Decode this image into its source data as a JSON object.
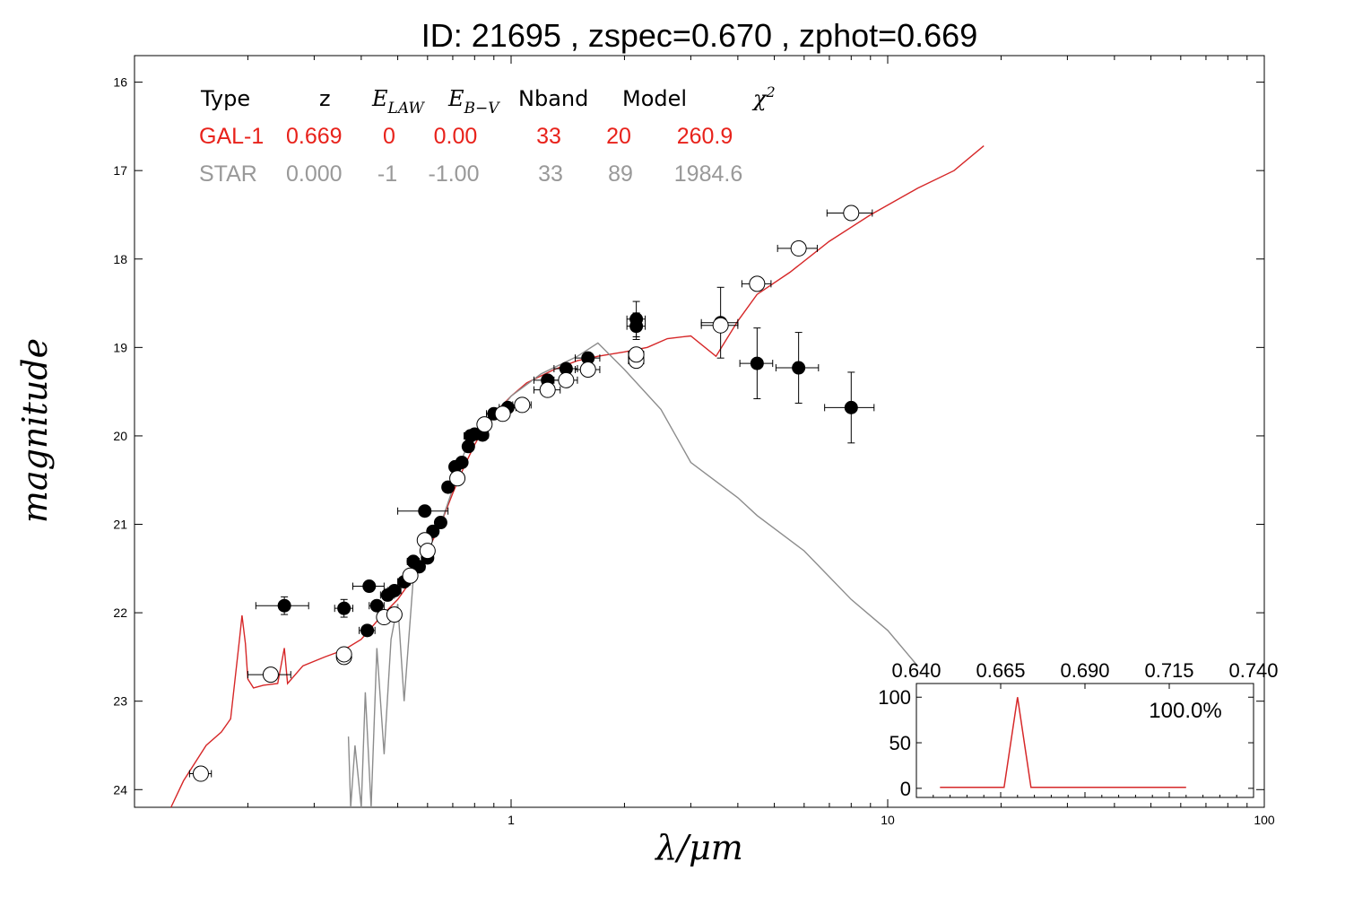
{
  "chart_data": {
    "type": "scatter",
    "title": "ID:  21695 , zspec=0.670 , zphot=0.669",
    "xlabel": "λ/μm",
    "ylabel": "magnitude",
    "x_scale": "log",
    "xlim": [
      0.1,
      100
    ],
    "ylim": [
      24.2,
      15.7
    ],
    "x_ticks": [
      {
        "v": 1,
        "label": "1"
      },
      {
        "v": 10,
        "label": "10"
      },
      {
        "v": 100,
        "label": "100"
      }
    ],
    "y_ticks": [
      {
        "v": 16,
        "label": "16"
      },
      {
        "v": 17,
        "label": "17"
      },
      {
        "v": 18,
        "label": "18"
      },
      {
        "v": 19,
        "label": "19"
      },
      {
        "v": 20,
        "label": "20"
      },
      {
        "v": 21,
        "label": "21"
      },
      {
        "v": 22,
        "label": "22"
      },
      {
        "v": 23,
        "label": "23"
      },
      {
        "v": 24,
        "label": "24"
      }
    ],
    "table": {
      "headers": {
        "type": "Type",
        "z": "z",
        "elaw_base": "E",
        "elaw_sub": "LAW",
        "ebv_base": "E",
        "ebv_sub": "B−V",
        "nband": "Nband",
        "model": "Model",
        "chi_base": "χ",
        "chi_sup": "2"
      },
      "rows": [
        {
          "type": "GAL-1",
          "z": "0.669",
          "elaw": "0",
          "ebv": "0.00",
          "nband": "33",
          "model": "20",
          "chi2": "260.9",
          "color": "#e8221b"
        },
        {
          "type": "STAR",
          "z": "0.000",
          "elaw": "-1",
          "ebv": "-1.00",
          "nband": "33",
          "model": "89",
          "chi2": "1984.6",
          "color": "#999999"
        }
      ]
    },
    "series": [
      {
        "name": "GAL-1",
        "color": "#d62728",
        "points": [
          [
            0.125,
            24.2
          ],
          [
            0.135,
            23.9
          ],
          [
            0.155,
            23.5
          ],
          [
            0.17,
            23.35
          ],
          [
            0.18,
            23.2
          ],
          [
            0.19,
            22.3
          ],
          [
            0.193,
            22.03
          ],
          [
            0.197,
            22.35
          ],
          [
            0.2,
            22.75
          ],
          [
            0.207,
            22.85
          ],
          [
            0.22,
            22.82
          ],
          [
            0.24,
            22.8
          ],
          [
            0.25,
            22.4
          ],
          [
            0.255,
            22.8
          ],
          [
            0.28,
            22.6
          ],
          [
            0.32,
            22.5
          ],
          [
            0.36,
            22.42
          ],
          [
            0.4,
            22.3
          ],
          [
            0.45,
            22.05
          ],
          [
            0.5,
            21.85
          ],
          [
            0.55,
            21.6
          ],
          [
            0.6,
            21.3
          ],
          [
            0.65,
            21.0
          ],
          [
            0.7,
            20.65
          ],
          [
            0.75,
            20.35
          ],
          [
            0.8,
            20.1
          ],
          [
            0.85,
            19.9
          ],
          [
            0.9,
            19.75
          ],
          [
            1.0,
            19.55
          ],
          [
            1.1,
            19.4
          ],
          [
            1.3,
            19.25
          ],
          [
            1.5,
            19.15
          ],
          [
            1.7,
            19.1
          ],
          [
            2.0,
            19.05
          ],
          [
            2.3,
            19.0
          ],
          [
            2.6,
            18.9
          ],
          [
            3.0,
            18.87
          ],
          [
            3.5,
            19.1
          ],
          [
            4.0,
            18.7
          ],
          [
            4.5,
            18.4
          ],
          [
            5.5,
            18.15
          ],
          [
            7.0,
            17.8
          ],
          [
            9.0,
            17.5
          ],
          [
            12.0,
            17.2
          ],
          [
            15.0,
            17.0
          ],
          [
            18.0,
            16.72
          ]
        ]
      },
      {
        "name": "STAR",
        "color": "#8c8c8c",
        "points": [
          [
            0.37,
            23.4
          ],
          [
            0.375,
            24.2
          ],
          [
            0.385,
            23.5
          ],
          [
            0.4,
            24.2
          ],
          [
            0.41,
            22.9
          ],
          [
            0.425,
            24.2
          ],
          [
            0.44,
            22.4
          ],
          [
            0.46,
            23.6
          ],
          [
            0.48,
            22.3
          ],
          [
            0.5,
            21.9
          ],
          [
            0.52,
            23.0
          ],
          [
            0.55,
            21.6
          ],
          [
            0.6,
            21.25
          ],
          [
            0.65,
            21.0
          ],
          [
            0.7,
            20.6
          ],
          [
            0.75,
            20.2
          ],
          [
            0.8,
            20.0
          ],
          [
            0.9,
            19.8
          ],
          [
            1.0,
            19.55
          ],
          [
            1.2,
            19.3
          ],
          [
            1.5,
            19.1
          ],
          [
            1.7,
            18.95
          ],
          [
            2.0,
            19.25
          ],
          [
            2.5,
            19.7
          ],
          [
            3.0,
            20.3
          ],
          [
            4.0,
            20.7
          ],
          [
            4.5,
            20.9
          ],
          [
            6.0,
            21.3
          ],
          [
            8.0,
            21.85
          ],
          [
            10.0,
            22.2
          ],
          [
            12.0,
            22.6
          ]
        ]
      }
    ],
    "observed": [
      {
        "x": 0.25,
        "y": 21.92,
        "xerr": 0.04,
        "yerr": 0.1
      },
      {
        "x": 0.36,
        "y": 21.95,
        "xerr": 0.02,
        "yerr": 0.1
      },
      {
        "x": 0.42,
        "y": 21.7,
        "xerr": 0.04,
        "yerr": 0.05
      },
      {
        "x": 0.415,
        "y": 22.2,
        "xerr": 0.02,
        "yerr": 0.05
      },
      {
        "x": 0.44,
        "y": 21.92,
        "xerr": 0.02,
        "yerr": 0.05
      },
      {
        "x": 0.47,
        "y": 21.8,
        "xerr": 0.02,
        "yerr": 0.05
      },
      {
        "x": 0.49,
        "y": 21.75,
        "xerr": 0.02,
        "yerr": 0.05
      },
      {
        "x": 0.52,
        "y": 21.65,
        "xerr": 0.02,
        "yerr": 0.05
      },
      {
        "x": 0.55,
        "y": 21.42,
        "xerr": 0.02,
        "yerr": 0.05
      },
      {
        "x": 0.57,
        "y": 21.48,
        "xerr": 0.02,
        "yerr": 0.05
      },
      {
        "x": 0.6,
        "y": 21.38,
        "xerr": 0.02,
        "yerr": 0.05
      },
      {
        "x": 0.59,
        "y": 20.85,
        "xerr": 0.09,
        "yerr": 0.05
      },
      {
        "x": 0.62,
        "y": 21.08,
        "xerr": 0.02,
        "yerr": 0.05
      },
      {
        "x": 0.65,
        "y": 20.98,
        "xerr": 0.02,
        "yerr": 0.05
      },
      {
        "x": 0.68,
        "y": 20.58,
        "xerr": 0.02,
        "yerr": 0.05
      },
      {
        "x": 0.71,
        "y": 20.35,
        "xerr": 0.02,
        "yerr": 0.05
      },
      {
        "x": 0.74,
        "y": 20.3,
        "xerr": 0.02,
        "yerr": 0.05
      },
      {
        "x": 0.77,
        "y": 20.12,
        "xerr": 0.02,
        "yerr": 0.05
      },
      {
        "x": 0.78,
        "y": 20.0,
        "xerr": 0.03,
        "yerr": 0.05
      },
      {
        "x": 0.8,
        "y": 19.98,
        "xerr": 0.03,
        "yerr": 0.05
      },
      {
        "x": 0.84,
        "y": 19.99,
        "xerr": 0.03,
        "yerr": 0.05
      },
      {
        "x": 0.9,
        "y": 19.75,
        "xerr": 0.04,
        "yerr": 0.05
      },
      {
        "x": 0.98,
        "y": 19.68,
        "xerr": 0.05,
        "yerr": 0.05
      },
      {
        "x": 1.25,
        "y": 19.37,
        "xerr": 0.1,
        "yerr": 0.05
      },
      {
        "x": 1.4,
        "y": 19.24,
        "xerr": 0.1,
        "yerr": 0.05
      },
      {
        "x": 1.6,
        "y": 19.12,
        "xerr": 0.12,
        "yerr": 0.05
      },
      {
        "x": 2.15,
        "y": 18.68,
        "xerr": 0.12,
        "yerr": 0.2
      },
      {
        "x": 2.15,
        "y": 18.76,
        "xerr": 0.12,
        "yerr": 0.15
      },
      {
        "x": 3.6,
        "y": 18.72,
        "xerr": 0.4,
        "yerr": 0.4
      },
      {
        "x": 4.5,
        "y": 19.18,
        "xerr": 0.45,
        "yerr": 0.4
      },
      {
        "x": 5.8,
        "y": 19.23,
        "xerr": 0.75,
        "yerr": 0.4
      },
      {
        "x": 8.0,
        "y": 19.68,
        "xerr": 1.2,
        "yerr": 0.4
      }
    ],
    "model_fluxes": [
      {
        "x": 0.15,
        "y": 23.82,
        "xerr": 0.01
      },
      {
        "x": 0.23,
        "y": 22.7,
        "xerr": 0.03
      },
      {
        "x": 0.36,
        "y": 22.5,
        "xerr": 0.01
      },
      {
        "x": 0.36,
        "y": 22.47,
        "xerr": 0.01
      },
      {
        "x": 0.46,
        "y": 22.05,
        "xerr": 0.01
      },
      {
        "x": 0.49,
        "y": 22.02,
        "xerr": 0.01
      },
      {
        "x": 0.54,
        "y": 21.58,
        "xerr": 0.02
      },
      {
        "x": 0.59,
        "y": 21.18,
        "xerr": 0.02
      },
      {
        "x": 0.6,
        "y": 21.3,
        "xerr": 0.02
      },
      {
        "x": 0.72,
        "y": 20.48,
        "xerr": 0.02
      },
      {
        "x": 0.85,
        "y": 19.87,
        "xerr": 0.03
      },
      {
        "x": 0.95,
        "y": 19.75,
        "xerr": 0.03
      },
      {
        "x": 1.07,
        "y": 19.65,
        "xerr": 0.06
      },
      {
        "x": 1.25,
        "y": 19.48,
        "xerr": 0.1
      },
      {
        "x": 1.4,
        "y": 19.37,
        "xerr": 0.1
      },
      {
        "x": 1.6,
        "y": 19.25,
        "xerr": 0.12
      },
      {
        "x": 2.15,
        "y": 19.15,
        "xerr": 0.1
      },
      {
        "x": 2.15,
        "y": 19.08,
        "xerr": 0.1
      },
      {
        "x": 3.6,
        "y": 18.75,
        "xerr": 0.4
      },
      {
        "x": 4.5,
        "y": 18.28,
        "xerr": 0.4
      },
      {
        "x": 5.8,
        "y": 17.88,
        "xerr": 0.7
      },
      {
        "x": 8.0,
        "y": 17.48,
        "xerr": 1.1
      }
    ],
    "inset": {
      "type": "line",
      "xlim": [
        0.64,
        0.74
      ],
      "ylim": [
        -10,
        115
      ],
      "x_ticks": [
        {
          "v": 0.64,
          "label": "0.640"
        },
        {
          "v": 0.665,
          "label": "0.665"
        },
        {
          "v": 0.69,
          "label": "0.690"
        },
        {
          "v": 0.715,
          "label": "0.715"
        },
        {
          "v": 0.74,
          "label": "0.740"
        }
      ],
      "y_ticks": [
        {
          "v": 0,
          "label": "0"
        },
        {
          "v": 50,
          "label": "50"
        },
        {
          "v": 100,
          "label": "100"
        }
      ],
      "annotation": "100.0%",
      "color": "#d62728",
      "points": [
        [
          0.647,
          1
        ],
        [
          0.666,
          1
        ],
        [
          0.67,
          100
        ],
        [
          0.674,
          1
        ],
        [
          0.72,
          1
        ]
      ]
    }
  }
}
